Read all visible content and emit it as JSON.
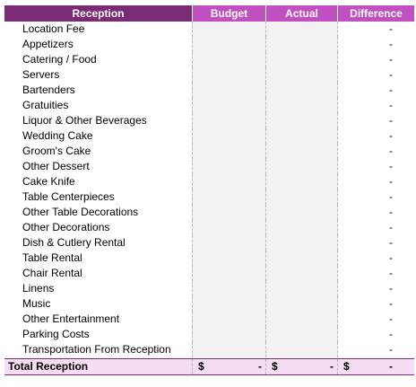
{
  "header": {
    "reception": "Reception",
    "budget": "Budget",
    "actual": "Actual",
    "difference": "Difference"
  },
  "rows": [
    {
      "label": "Location Fee",
      "difference": "-"
    },
    {
      "label": "Appetizers",
      "difference": "-"
    },
    {
      "label": "Catering / Food",
      "difference": "-"
    },
    {
      "label": "Servers",
      "difference": "-"
    },
    {
      "label": "Bartenders",
      "difference": "-"
    },
    {
      "label": "Gratuities",
      "difference": "-"
    },
    {
      "label": "Liquor & Other Beverages",
      "difference": "-"
    },
    {
      "label": "Wedding Cake",
      "difference": "-"
    },
    {
      "label": "Groom's Cake",
      "difference": "-"
    },
    {
      "label": "Other Dessert",
      "difference": "-"
    },
    {
      "label": "Cake Knife",
      "difference": "-"
    },
    {
      "label": "Table Centerpieces",
      "difference": "-"
    },
    {
      "label": "Other Table Decorations",
      "difference": "-"
    },
    {
      "label": "Other Decorations",
      "difference": "-"
    },
    {
      "label": "Dish & Cutlery Rental",
      "difference": "-"
    },
    {
      "label": "Table Rental",
      "difference": "-"
    },
    {
      "label": "Chair Rental",
      "difference": "-"
    },
    {
      "label": "Linens",
      "difference": "-"
    },
    {
      "label": "Music",
      "difference": "-"
    },
    {
      "label": "Other Entertainment",
      "difference": "-"
    },
    {
      "label": "Parking Costs",
      "difference": "-"
    },
    {
      "label": "Transportation From Reception",
      "difference": "-"
    }
  ],
  "total": {
    "label": "Total Reception",
    "currency": "$",
    "budget": "-",
    "actual": "-",
    "difference": "-"
  }
}
